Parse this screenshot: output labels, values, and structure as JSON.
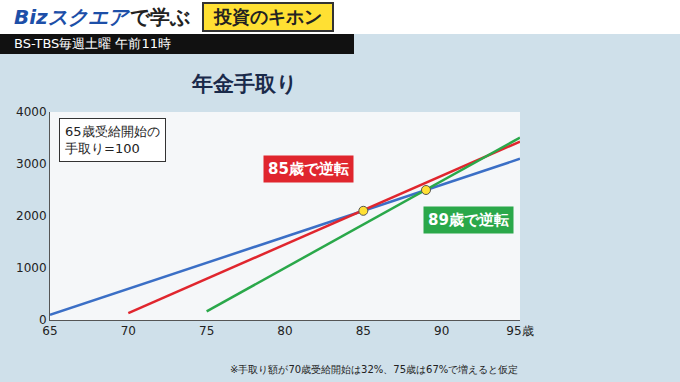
{
  "header": {
    "program": "Bizスクエア",
    "program_suffix": "で学ぶ",
    "segment": "投資のキホン",
    "broadcast": "BS-TBS毎週土曜 午前11時"
  },
  "chart_data": {
    "type": "line",
    "title": "年金手取り",
    "note": "65歳受給開始の\n手取り=100",
    "footnote": "※手取り額が70歳受給開始は32%、75歳は67%で増えると仮定",
    "xlim": [
      65,
      95
    ],
    "xticks": [
      65,
      70,
      75,
      80,
      85,
      90,
      {
        "value": 95,
        "label": "95歳"
      }
    ],
    "ylim": [
      0,
      4000
    ],
    "yticks": [
      0,
      1000,
      2000,
      3000,
      4000
    ],
    "grid": false,
    "series": [
      {
        "color": "#3b6fc6",
        "x": [
          65,
          95
        ],
        "values": [
          100,
          3100
        ]
      },
      {
        "color": "#e0262e",
        "x": [
          70,
          95
        ],
        "values": [
          132,
          3432
        ]
      },
      {
        "color": "#2aa84a",
        "x": [
          75,
          95
        ],
        "values": [
          167,
          3507
        ]
      }
    ],
    "annotations": [
      {
        "text": "85歳で逆転",
        "x": 85,
        "y": 2100,
        "color": "#e0262e"
      },
      {
        "text": "89歳で逆転",
        "x": 89,
        "y": 2500,
        "color": "#2aa84a"
      }
    ]
  }
}
